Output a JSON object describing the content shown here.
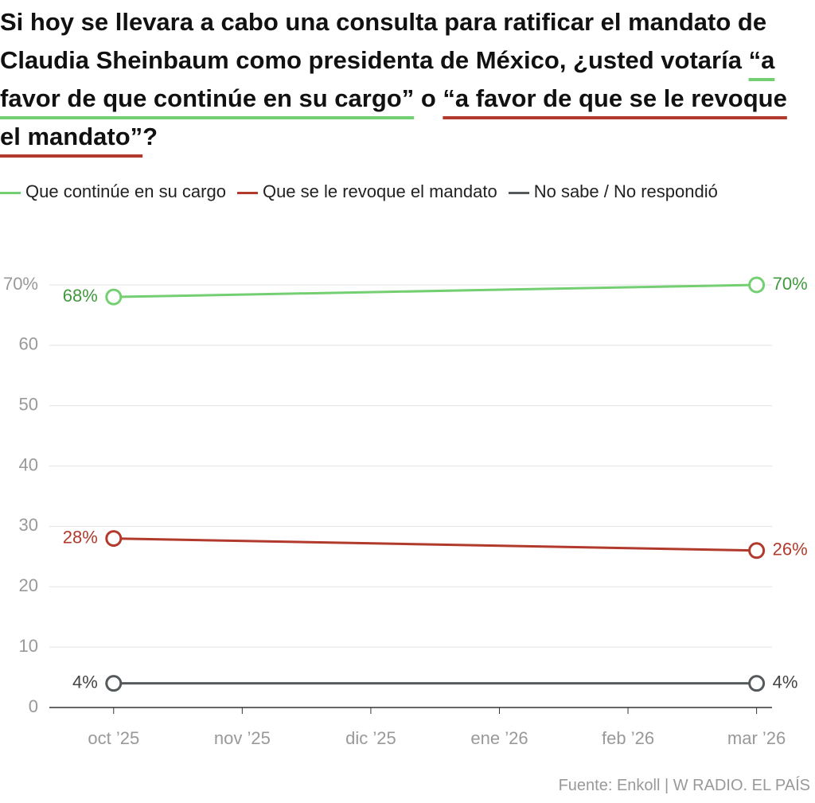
{
  "chart_data": {
    "type": "line",
    "title": [
      "Si hoy se llevara a cabo una consulta para ratificar el mandato de Claudia Sheinbaum como presidenta de México, ¿usted votaría ",
      "“a favor de que continúe en su cargo”",
      " o ",
      "“a favor de que se le revoque el mandato”",
      "?"
    ],
    "x": [
      0,
      5
    ],
    "xlim": [
      -0.5,
      5.12
    ],
    "xticks": [
      {
        "value": 0,
        "label": "oct ’25"
      },
      {
        "value": 1,
        "label": "nov ’25"
      },
      {
        "value": 2,
        "label": "dic ’25"
      },
      {
        "value": 3,
        "label": "ene ’26"
      },
      {
        "value": 4,
        "label": "feb ’26"
      },
      {
        "value": 5,
        "label": "mar ’26"
      }
    ],
    "ylim": [
      0,
      70
    ],
    "yticks": [
      0,
      10,
      20,
      30,
      40,
      50,
      60,
      {
        "value": 70,
        "label": "70%"
      }
    ],
    "grid": true,
    "series": [
      {
        "name": "Que continúe en su cargo",
        "color": "#74cf72",
        "label_color": "#3f9a3d",
        "values": [
          68,
          70
        ],
        "value_labels": [
          "68%",
          "70%"
        ]
      },
      {
        "name": "Que se le revoque el mandato",
        "color": "#b23a2c",
        "label_color": "#b23a2c",
        "values": [
          28,
          26
        ],
        "value_labels": [
          "28%",
          "26%"
        ]
      },
      {
        "name": "No sabe / No respondió",
        "color": "#54595c",
        "label_color": "#444444",
        "values": [
          4,
          4
        ],
        "value_labels": [
          "4%",
          "4%"
        ]
      }
    ],
    "source": "Fuente: Enkoll | W RADIO. EL PAÍS"
  }
}
